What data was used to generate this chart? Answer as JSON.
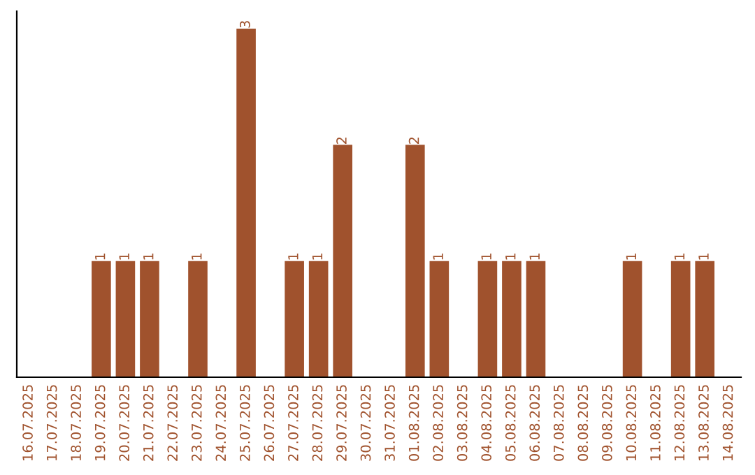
{
  "chart_data": {
    "type": "bar",
    "categories": [
      "16.07.2025",
      "17.07.2025",
      "18.07.2025",
      "19.07.2025",
      "20.07.2025",
      "21.07.2025",
      "22.07.2025",
      "23.07.2025",
      "24.07.2025",
      "25.07.2025",
      "26.07.2025",
      "27.07.2025",
      "28.07.2025",
      "29.07.2025",
      "30.07.2025",
      "31.07.2025",
      "01.08.2025",
      "02.08.2025",
      "03.08.2025",
      "04.08.2025",
      "05.08.2025",
      "06.08.2025",
      "07.08.2025",
      "08.08.2025",
      "09.08.2025",
      "10.08.2025",
      "11.08.2025",
      "12.08.2025",
      "13.08.2025",
      "14.08.2025"
    ],
    "values": [
      0,
      0,
      0,
      1,
      1,
      1,
      0,
      1,
      0,
      3,
      0,
      1,
      1,
      2,
      0,
      0,
      2,
      1,
      0,
      1,
      1,
      1,
      0,
      0,
      0,
      1,
      0,
      1,
      1,
      0
    ],
    "value_labels": [
      null,
      null,
      null,
      "1",
      "1",
      "1",
      null,
      "1",
      null,
      "3",
      null,
      "1",
      "1",
      "2",
      null,
      null,
      "2",
      "1",
      null,
      "1",
      "1",
      "1",
      null,
      null,
      null,
      "1",
      null,
      "1",
      "1",
      null
    ],
    "color": "#a0522d",
    "ylim": [
      0,
      3.15
    ],
    "tick_labels": "x",
    "grid": false,
    "legend": false
  }
}
